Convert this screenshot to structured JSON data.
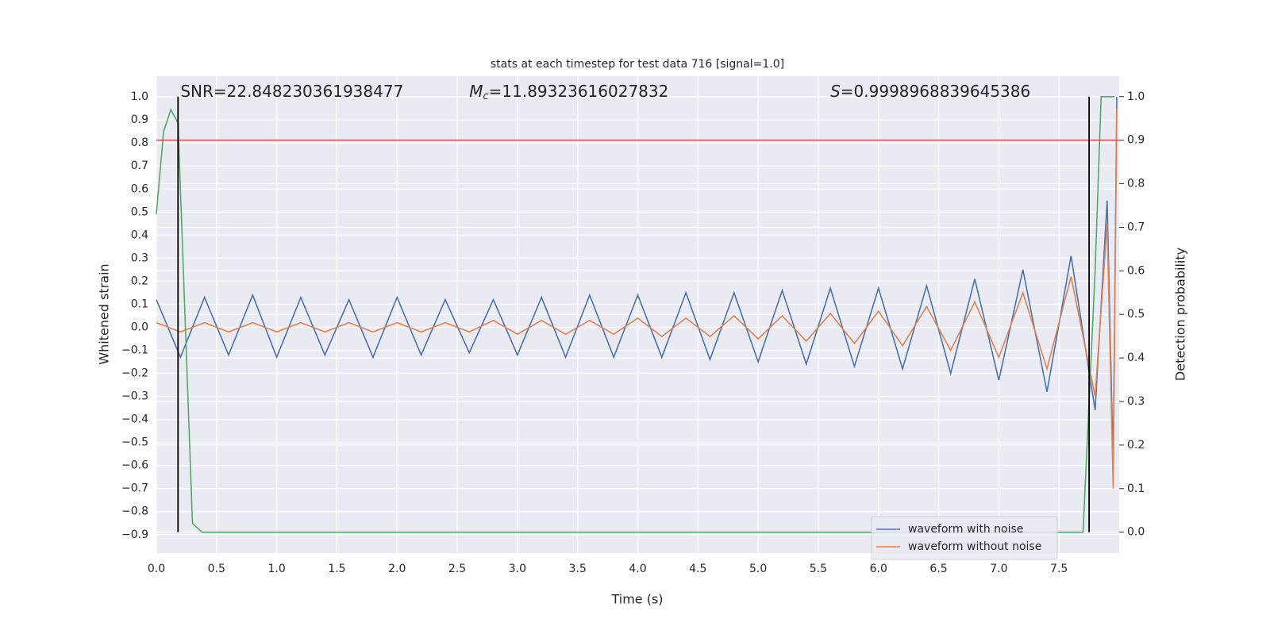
{
  "chart_data": {
    "type": "line",
    "title": "stats at each timestep for test data 716 [signal=1.0]",
    "xlabel": "Time (s)",
    "ylabel": "Whitened strain",
    "y2label": "Detection probability",
    "annotations": [
      {
        "text": "SNR=22.848230361938477",
        "x": 0.2
      },
      {
        "symbol": "M",
        "subscript": "c",
        "text": "=11.89323616027832",
        "x": 2.6
      },
      {
        "symbol": "S",
        "text": "=0.9998968839645386",
        "x": 5.6
      }
    ],
    "xlim": [
      0,
      8.0
    ],
    "ylim": [
      -0.98,
      1.09
    ],
    "y2lim": [
      -0.048,
      1.047
    ],
    "xticks": [
      {
        "value": 0,
        "label": "0.0"
      },
      0.5,
      {
        "value": 1,
        "label": "1.0"
      },
      1.5,
      {
        "value": 2,
        "label": "2.0"
      },
      2.5,
      {
        "value": 3,
        "label": "3.0"
      },
      3.5,
      {
        "value": 4,
        "label": "4.0"
      },
      4.5,
      {
        "value": 5,
        "label": "5.0"
      },
      5.5,
      {
        "value": 6,
        "label": "6.0"
      },
      6.5,
      {
        "value": 7,
        "label": "7.0"
      },
      7.5
    ],
    "yticks": [
      {
        "value": -0.9,
        "label": "−0.9"
      },
      {
        "value": -0.8,
        "label": "−0.8"
      },
      {
        "value": -0.7,
        "label": "−0.7"
      },
      {
        "value": -0.6,
        "label": "−0.6"
      },
      {
        "value": -0.5,
        "label": "−0.5"
      },
      {
        "value": -0.4,
        "label": "−0.4"
      },
      {
        "value": -0.3,
        "label": "−0.3"
      },
      {
        "value": -0.2,
        "label": "−0.2"
      },
      {
        "value": -0.1,
        "label": "−0.1"
      },
      {
        "value": 0,
        "label": "0.0"
      },
      0.1,
      0.2,
      0.3,
      0.4,
      0.5,
      0.6,
      0.7,
      0.8,
      0.9,
      {
        "value": 1,
        "label": "1.0"
      }
    ],
    "y2ticks": [
      {
        "value": 0,
        "label": "0.0"
      },
      0.1,
      0.2,
      0.3,
      0.4,
      0.5,
      0.6,
      0.7,
      0.8,
      0.9,
      {
        "value": 1,
        "label": "1.0"
      }
    ],
    "grid": true,
    "legend": "lower right",
    "x": [
      0,
      0.2,
      0.4,
      0.6,
      0.8,
      1.0,
      1.2,
      1.4,
      1.6,
      1.8,
      2.0,
      2.2,
      2.4,
      2.6,
      2.8,
      3.0,
      3.2,
      3.4,
      3.6,
      3.8,
      4.0,
      4.2,
      4.4,
      4.6,
      4.8,
      5.0,
      5.2,
      5.4,
      5.6,
      5.8,
      6.0,
      6.2,
      6.4,
      6.6,
      6.8,
      7.0,
      7.2,
      7.4,
      7.6,
      7.8,
      7.9,
      7.95,
      7.98
    ],
    "series": [
      {
        "name": "waveform with noise",
        "color": "#4c72b0",
        "values": [
          0.12,
          -0.13,
          0.13,
          -0.12,
          0.14,
          -0.13,
          0.13,
          -0.12,
          0.12,
          -0.13,
          0.13,
          -0.12,
          0.12,
          -0.11,
          0.12,
          -0.12,
          0.13,
          -0.13,
          0.14,
          -0.13,
          0.14,
          -0.13,
          0.15,
          -0.14,
          0.15,
          -0.15,
          0.16,
          -0.16,
          0.17,
          -0.17,
          0.17,
          -0.18,
          0.18,
          -0.2,
          0.21,
          -0.23,
          0.25,
          -0.28,
          0.31,
          -0.36,
          0.55,
          -0.6,
          1.0
        ]
      },
      {
        "name": "waveform without noise",
        "color": "#dd8452",
        "values": [
          0.02,
          -0.02,
          0.02,
          -0.02,
          0.02,
          -0.02,
          0.02,
          -0.02,
          0.02,
          -0.02,
          0.02,
          -0.02,
          0.02,
          -0.02,
          0.03,
          -0.03,
          0.03,
          -0.03,
          0.03,
          -0.03,
          0.04,
          -0.04,
          0.04,
          -0.04,
          0.05,
          -0.05,
          0.05,
          -0.06,
          0.06,
          -0.07,
          0.07,
          -0.08,
          0.09,
          -0.1,
          0.11,
          -0.13,
          0.15,
          -0.18,
          0.22,
          -0.3,
          0.45,
          -0.7,
          0.95
        ]
      },
      {
        "color": "#55a868",
        "axis": "y2",
        "x": [
          0,
          0.06,
          0.12,
          0.18,
          0.3,
          0.38,
          7.7,
          7.8,
          7.85,
          7.96
        ],
        "values": [
          0.73,
          0.92,
          0.97,
          0.94,
          0.02,
          0,
          0,
          0.6,
          1.0,
          1.0
        ]
      }
    ],
    "hline": {
      "y2": 0.9,
      "color": "#c44e52"
    },
    "vlines": {
      "x": [
        0.18,
        7.75
      ],
      "color": "#000000",
      "y2": [
        0,
        1
      ]
    }
  }
}
